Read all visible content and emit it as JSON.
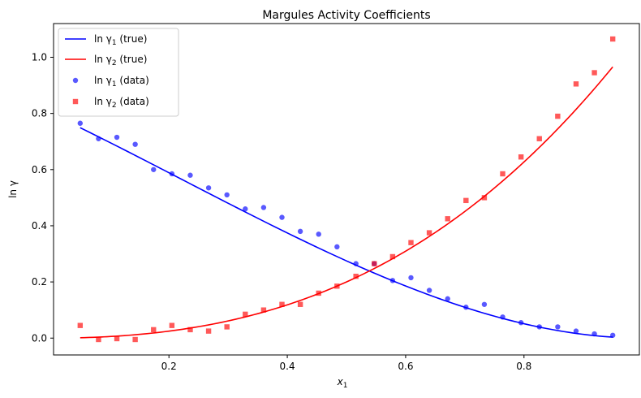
{
  "chart_data": {
    "type": "line",
    "title": "Margules Activity Coefficients",
    "xlabel": "x",
    "xlabel_sub": "1",
    "ylabel": "ln γ",
    "xlim": [
      0.005,
      0.995
    ],
    "ylim": [
      -0.06,
      1.12
    ],
    "xticks": [
      0.2,
      0.4,
      0.6,
      0.8
    ],
    "yticks": [
      0.0,
      0.2,
      0.4,
      0.6,
      0.8,
      1.0
    ],
    "xtick_labels": [
      "0.2",
      "0.4",
      "0.6",
      "0.8"
    ],
    "ytick_labels": [
      "0.0",
      "0.2",
      "0.4",
      "0.6",
      "0.8",
      "1.0"
    ],
    "grid": false,
    "legend_position": "top-left",
    "legend": [
      {
        "pre": "ln γ",
        "sub": "1",
        "post": " (true)",
        "kind": "line",
        "color": "#0000ff"
      },
      {
        "pre": "ln γ",
        "sub": "2",
        "post": " (true)",
        "kind": "line",
        "color": "#ff0000"
      },
      {
        "pre": "ln γ",
        "sub": "1",
        "post": " (data)",
        "kind": "circle",
        "color": "#0000ff"
      },
      {
        "pre": "ln γ",
        "sub": "2",
        "post": " (data)",
        "kind": "square",
        "color": "#ff0000"
      }
    ],
    "lines": [
      {
        "name": "ln γ1 (true)",
        "color": "#0000ff",
        "A12": 0.8,
        "A21": 1.1,
        "component": 1,
        "x_range": [
          0.05,
          0.95
        ]
      },
      {
        "name": "ln γ2 (true)",
        "color": "#ff0000",
        "A12": 0.8,
        "A21": 1.1,
        "component": 2,
        "x_range": [
          0.05,
          0.95
        ]
      }
    ],
    "scatter": [
      {
        "name": "ln γ1 (data)",
        "marker": "circle",
        "color": "#0000ff",
        "x": [
          0.05,
          0.081,
          0.112,
          0.143,
          0.174,
          0.205,
          0.236,
          0.267,
          0.298,
          0.329,
          0.36,
          0.391,
          0.422,
          0.453,
          0.484,
          0.516,
          0.547,
          0.578,
          0.609,
          0.64,
          0.671,
          0.702,
          0.733,
          0.764,
          0.795,
          0.826,
          0.857,
          0.888,
          0.919,
          0.95
        ],
        "y": [
          0.765,
          0.71,
          0.715,
          0.69,
          0.6,
          0.585,
          0.58,
          0.535,
          0.51,
          0.46,
          0.465,
          0.43,
          0.38,
          0.37,
          0.325,
          0.265,
          0.265,
          0.205,
          0.215,
          0.17,
          0.14,
          0.11,
          0.12,
          0.075,
          0.055,
          0.04,
          0.04,
          0.025,
          0.015,
          0.01
        ]
      },
      {
        "name": "ln γ2 (data)",
        "marker": "square",
        "color": "#ff0000",
        "x": [
          0.05,
          0.081,
          0.112,
          0.143,
          0.174,
          0.205,
          0.236,
          0.267,
          0.298,
          0.329,
          0.36,
          0.391,
          0.422,
          0.453,
          0.484,
          0.516,
          0.547,
          0.578,
          0.609,
          0.64,
          0.671,
          0.702,
          0.733,
          0.764,
          0.795,
          0.826,
          0.857,
          0.888,
          0.919,
          0.95
        ],
        "y": [
          0.045,
          -0.005,
          -0.002,
          -0.005,
          0.03,
          0.045,
          0.03,
          0.025,
          0.04,
          0.085,
          0.1,
          0.12,
          0.12,
          0.16,
          0.185,
          0.22,
          0.265,
          0.29,
          0.34,
          0.375,
          0.425,
          0.49,
          0.5,
          0.585,
          0.645,
          0.71,
          0.79,
          0.905,
          0.945,
          1.065
        ]
      }
    ]
  }
}
